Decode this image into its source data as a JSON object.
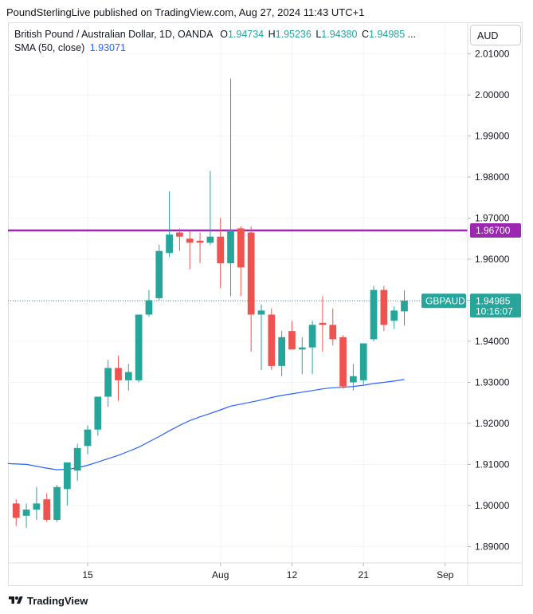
{
  "header": {
    "publisher_line": "PoundSterlingLive published on TradingView.com, Aug 27, 2024 11:43 UTC+1"
  },
  "legend": {
    "title": "British Pound / Australian Dollar, 1D, OANDA",
    "o_label": "O",
    "o_value": "1.94734",
    "h_label": "H",
    "h_value": "1.95236",
    "l_label": "L",
    "l_value": "1.94380",
    "c_label": "C",
    "c_value": "1.94985",
    "ellipsis": "...",
    "sma_label": "SMA (50, close)",
    "sma_value": "1.93071"
  },
  "currency_button": "AUD",
  "footer": {
    "brand": "TradingView"
  },
  "colors": {
    "up": "#26a69a",
    "down": "#ef5350",
    "sma": "#2962ff",
    "level": "#9c27b0",
    "last": "#26a69a"
  },
  "chart_data": {
    "type": "candlestick",
    "symbol": "GBPAUD",
    "x_ticks": [
      {
        "label": "15",
        "index": 7
      },
      {
        "label": "Aug",
        "index": 20
      },
      {
        "label": "12",
        "index": 27
      },
      {
        "label": "21",
        "index": 34
      },
      {
        "label": "Sep",
        "index": 42
      }
    ],
    "y_ticks": [
      "2.01000",
      "2.00000",
      "1.99000",
      "1.98000",
      "1.97000",
      "1.96000",
      "1.95000",
      "1.94000",
      "1.93000",
      "1.92000",
      "1.91000",
      "1.90000",
      "1.89000"
    ],
    "y_range": [
      1.886,
      2.0175
    ],
    "x_range": [
      -0.8,
      44.2
    ],
    "candles": [
      {
        "o": 1.9005,
        "h": 1.9015,
        "l": 1.895,
        "c": 1.897
      },
      {
        "o": 1.8975,
        "h": 1.9005,
        "l": 1.8945,
        "c": 1.899
      },
      {
        "o": 1.899,
        "h": 1.9045,
        "l": 1.8965,
        "c": 1.9005
      },
      {
        "o": 1.9015,
        "h": 1.903,
        "l": 1.896,
        "c": 1.8965
      },
      {
        "o": 1.8965,
        "h": 1.905,
        "l": 1.896,
        "c": 1.9045
      },
      {
        "o": 1.904,
        "h": 1.9105,
        "l": 1.9,
        "c": 1.9105
      },
      {
        "o": 1.9085,
        "h": 1.915,
        "l": 1.906,
        "c": 1.914
      },
      {
        "o": 1.9145,
        "h": 1.9195,
        "l": 1.9125,
        "c": 1.9185
      },
      {
        "o": 1.9185,
        "h": 1.9265,
        "l": 1.917,
        "c": 1.9265
      },
      {
        "o": 1.9265,
        "h": 1.9355,
        "l": 1.924,
        "c": 1.9335
      },
      {
        "o": 1.9335,
        "h": 1.9365,
        "l": 1.9255,
        "c": 1.9305
      },
      {
        "o": 1.9305,
        "h": 1.9345,
        "l": 1.928,
        "c": 1.9325
      },
      {
        "o": 1.9305,
        "h": 1.9465,
        "l": 1.93,
        "c": 1.9465
      },
      {
        "o": 1.9465,
        "h": 1.9525,
        "l": 1.946,
        "c": 1.95
      },
      {
        "o": 1.9505,
        "h": 1.9635,
        "l": 1.95,
        "c": 1.962
      },
      {
        "o": 1.9615,
        "h": 1.9765,
        "l": 1.9605,
        "c": 1.966
      },
      {
        "o": 1.9665,
        "h": 1.9675,
        "l": 1.962,
        "c": 1.9655
      },
      {
        "o": 1.965,
        "h": 1.967,
        "l": 1.9575,
        "c": 1.964
      },
      {
        "o": 1.9645,
        "h": 1.9665,
        "l": 1.959,
        "c": 1.964
      },
      {
        "o": 1.964,
        "h": 1.9815,
        "l": 1.9635,
        "c": 1.9655
      },
      {
        "o": 1.9655,
        "h": 1.97,
        "l": 1.953,
        "c": 1.959
      },
      {
        "o": 1.959,
        "h": 2.004,
        "l": 1.951,
        "c": 1.967
      },
      {
        "o": 1.9675,
        "h": 1.968,
        "l": 1.951,
        "c": 1.958
      },
      {
        "o": 1.9665,
        "h": 1.968,
        "l": 1.9375,
        "c": 1.9465
      },
      {
        "o": 1.9465,
        "h": 1.949,
        "l": 1.933,
        "c": 1.9475
      },
      {
        "o": 1.9465,
        "h": 1.948,
        "l": 1.933,
        "c": 1.934
      },
      {
        "o": 1.934,
        "h": 1.9425,
        "l": 1.9315,
        "c": 1.941
      },
      {
        "o": 1.9425,
        "h": 1.945,
        "l": 1.9385,
        "c": 1.938
      },
      {
        "o": 1.938,
        "h": 1.941,
        "l": 1.932,
        "c": 1.9385
      },
      {
        "o": 1.9385,
        "h": 1.945,
        "l": 1.932,
        "c": 1.944
      },
      {
        "o": 1.9445,
        "h": 1.951,
        "l": 1.9375,
        "c": 1.944
      },
      {
        "o": 1.944,
        "h": 1.948,
        "l": 1.939,
        "c": 1.9405
      },
      {
        "o": 1.941,
        "h": 1.9415,
        "l": 1.9285,
        "c": 1.929
      },
      {
        "o": 1.93,
        "h": 1.9345,
        "l": 1.928,
        "c": 1.9315
      },
      {
        "o": 1.9305,
        "h": 1.9395,
        "l": 1.9295,
        "c": 1.9395
      },
      {
        "o": 1.9405,
        "h": 1.9535,
        "l": 1.94,
        "c": 1.9525
      },
      {
        "o": 1.9525,
        "h": 1.9535,
        "l": 1.9425,
        "c": 1.944
      },
      {
        "o": 1.945,
        "h": 1.9485,
        "l": 1.943,
        "c": 1.9475
      },
      {
        "o": 1.9473,
        "h": 1.9524,
        "l": 1.9438,
        "c": 1.9499
      }
    ],
    "sma": {
      "name": "SMA (50, close)",
      "points": [
        [
          -0.8,
          1.9102
        ],
        [
          1,
          1.91
        ],
        [
          3,
          1.9091
        ],
        [
          4,
          1.9087
        ],
        [
          5,
          1.9088
        ],
        [
          6,
          1.9092
        ],
        [
          7,
          1.9098
        ],
        [
          8,
          1.9106
        ],
        [
          9,
          1.9114
        ],
        [
          10,
          1.9122
        ],
        [
          11,
          1.9132
        ],
        [
          12,
          1.9142
        ],
        [
          13,
          1.9155
        ],
        [
          14,
          1.9168
        ],
        [
          15,
          1.9182
        ],
        [
          16,
          1.9195
        ],
        [
          17,
          1.9207
        ],
        [
          18,
          1.9216
        ],
        [
          19,
          1.9224
        ],
        [
          20,
          1.9233
        ],
        [
          21,
          1.9242
        ],
        [
          22,
          1.9247
        ],
        [
          23,
          1.9252
        ],
        [
          24,
          1.9257
        ],
        [
          25,
          1.9263
        ],
        [
          26,
          1.9268
        ],
        [
          27,
          1.9272
        ],
        [
          28,
          1.9276
        ],
        [
          29,
          1.928
        ],
        [
          30,
          1.9284
        ],
        [
          31,
          1.9287
        ],
        [
          32,
          1.9288
        ],
        [
          33,
          1.929
        ],
        [
          34,
          1.9293
        ],
        [
          35,
          1.9297
        ],
        [
          36,
          1.93
        ],
        [
          37,
          1.9303
        ],
        [
          38,
          1.9307
        ]
      ]
    },
    "horizontal_level": {
      "value": 1.967,
      "label": "1.96700"
    },
    "last_price": {
      "value": 1.94985,
      "label": "1.94985",
      "symbol_label": "GBPAUD",
      "countdown": "10:16:07"
    }
  }
}
